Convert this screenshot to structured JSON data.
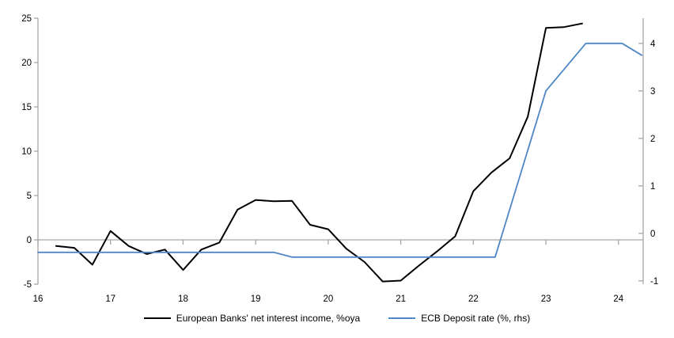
{
  "chart_data": {
    "type": "line",
    "title": "",
    "background": "#ffffff",
    "axis_color": "#a6a6a6",
    "text_color": "#000000",
    "grid": "zero-line-only",
    "legend_position": "bottom",
    "x_axis": {
      "min": 16,
      "max": 24.34,
      "tick_values": [
        16,
        17,
        18,
        19,
        20,
        21,
        22,
        23,
        24
      ],
      "ticks": [
        "16",
        "17",
        "18",
        "19",
        "20",
        "21",
        "22",
        "23",
        "24"
      ]
    },
    "left_axis": {
      "min": -5,
      "max": 25,
      "ticks": [
        25,
        20,
        15,
        10,
        5,
        0,
        -5
      ]
    },
    "right_axis": {
      "min": -1.07,
      "max": 4.53,
      "ticks": [
        4,
        3,
        2,
        1,
        0,
        -1
      ]
    },
    "series": [
      {
        "name": "European Banks' net interest income, %oya",
        "axis": "left",
        "color": "#000000",
        "stroke_width": 2,
        "points": [
          [
            16.25,
            -0.7
          ],
          [
            16.5,
            -0.9
          ],
          [
            16.75,
            -2.8
          ],
          [
            17.0,
            1.0
          ],
          [
            17.25,
            -0.7
          ],
          [
            17.5,
            -1.6
          ],
          [
            17.75,
            -1.1
          ],
          [
            18.0,
            -3.4
          ],
          [
            18.25,
            -1.1
          ],
          [
            18.5,
            -0.3
          ],
          [
            18.75,
            3.4
          ],
          [
            19.0,
            4.5
          ],
          [
            19.25,
            4.35
          ],
          [
            19.5,
            4.4
          ],
          [
            19.75,
            1.7
          ],
          [
            20.0,
            1.2
          ],
          [
            20.25,
            -1.0
          ],
          [
            20.5,
            -2.5
          ],
          [
            20.75,
            -4.7
          ],
          [
            21.0,
            -4.6
          ],
          [
            21.25,
            -2.9
          ],
          [
            21.5,
            -1.3
          ],
          [
            21.75,
            0.4
          ],
          [
            22.0,
            5.5
          ],
          [
            22.25,
            7.6
          ],
          [
            22.5,
            9.2
          ],
          [
            22.75,
            13.9
          ],
          [
            23.0,
            23.9
          ],
          [
            23.25,
            24.0
          ],
          [
            23.5,
            24.4
          ]
        ]
      },
      {
        "name": "ECB Deposit rate (%, rhs)",
        "axis": "right",
        "color": "#4f86c6",
        "stroke_width": 1.8,
        "points": [
          [
            16.0,
            -0.4
          ],
          [
            19.25,
            -0.4
          ],
          [
            19.5,
            -0.5
          ],
          [
            22.3,
            -0.5
          ],
          [
            23.0,
            3.0
          ],
          [
            23.55,
            4.0
          ],
          [
            24.05,
            4.0
          ],
          [
            24.32,
            3.75
          ]
        ]
      }
    ]
  }
}
